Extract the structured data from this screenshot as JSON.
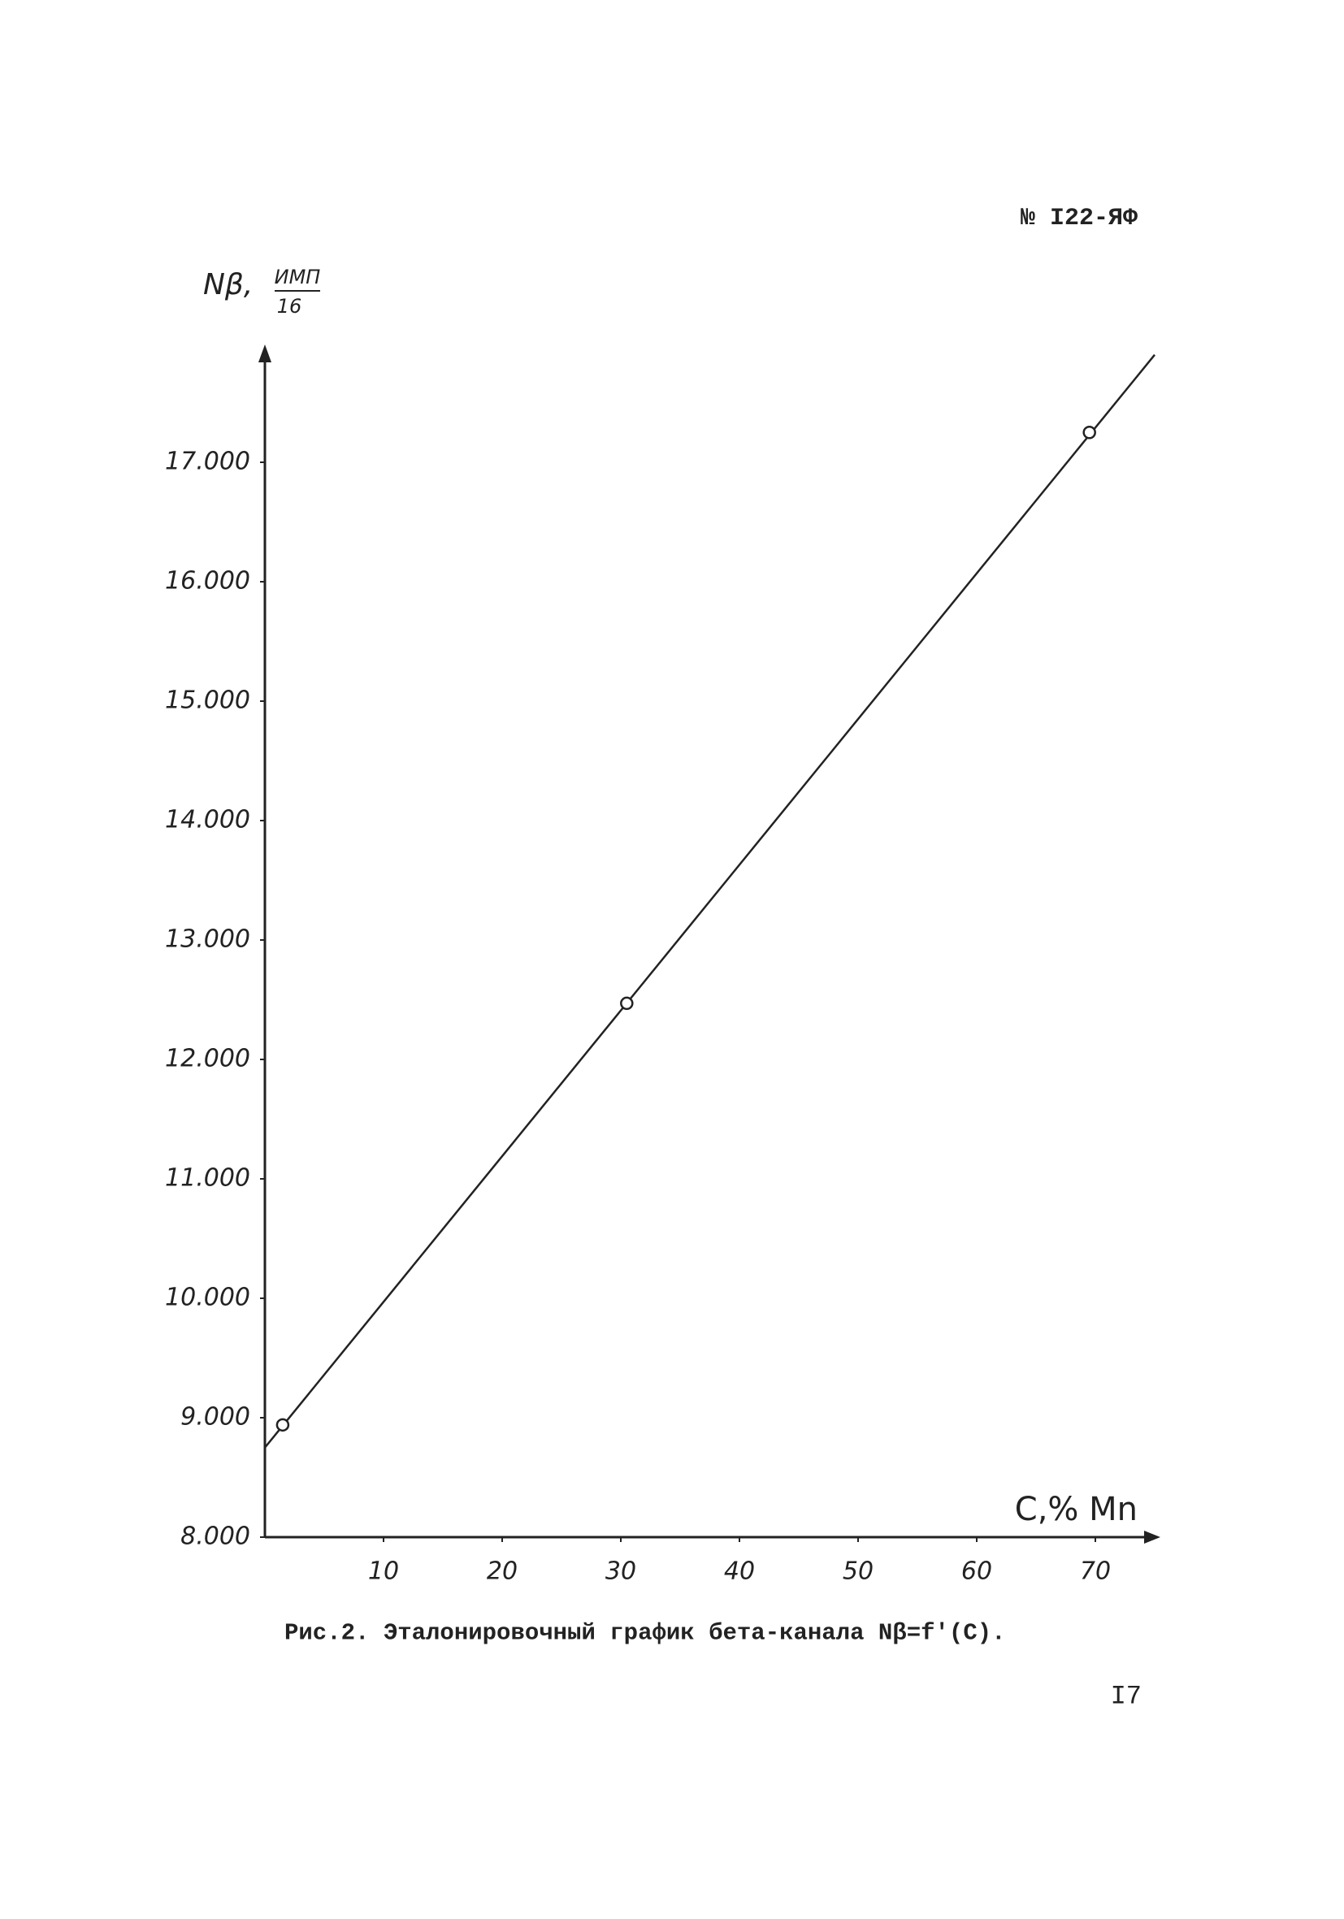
{
  "header": {
    "doc_number": "№ I22-ЯФ"
  },
  "chart_data": {
    "type": "line",
    "y_label": "Nβ,",
    "y_unit_numerator": "ИМП",
    "y_unit_denominator": "16",
    "x_label": "C,% Mn",
    "xlim": [
      0,
      75
    ],
    "xticks": [
      10,
      20,
      30,
      40,
      50,
      60,
      70
    ],
    "ylim": [
      8000,
      18000
    ],
    "yticks": [
      {
        "value": 8000,
        "label": "8.000"
      },
      {
        "value": 9000,
        "label": "9.000"
      },
      {
        "value": 10000,
        "label": "10.000"
      },
      {
        "value": 11000,
        "label": "11.000"
      },
      {
        "value": 12000,
        "label": "12.000"
      },
      {
        "value": 13000,
        "label": "13.000"
      },
      {
        "value": 14000,
        "label": "14.000"
      },
      {
        "value": 15000,
        "label": "15.000"
      },
      {
        "value": 16000,
        "label": "16.000"
      },
      {
        "value": 17000,
        "label": "17.000"
      }
    ],
    "series": [
      {
        "mode": "line",
        "color": "#222222",
        "x": [
          0,
          75
        ],
        "values": [
          8750,
          17900
        ]
      },
      {
        "mode": "markers",
        "color": "#222222",
        "x": [
          1.5,
          30.5,
          69.5
        ],
        "values": [
          8940,
          12470,
          17250
        ]
      }
    ],
    "caption": "Рис.2. Эталонировочный график бета-канала Nβ=f'(C)."
  },
  "footer": {
    "page_number": "I7"
  }
}
